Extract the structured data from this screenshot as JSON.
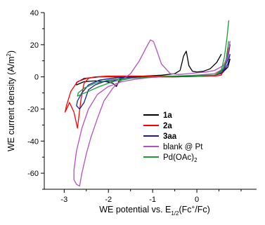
{
  "chart_data": {
    "type": "line",
    "title": "",
    "xlabel": "WE potential vs. E1/2(Fc+/Fc)",
    "xlabel_parts": {
      "main": "WE potential vs. E",
      "sub": "1/2",
      "open": "(Fc",
      "sup": "+",
      "close": "/Fc)"
    },
    "ylabel": "WE current density (A/m2)",
    "ylabel_parts": {
      "main": "WE current density (A/m",
      "sup": "2",
      "close": ")"
    },
    "xlim": [
      -3.45,
      1.35
    ],
    "ylim": [
      -70,
      40
    ],
    "xticks": [
      -3,
      -2,
      -1,
      0
    ],
    "xtick_labels": [
      "-3",
      "-2",
      "-1",
      "0"
    ],
    "yticks": [
      40,
      20,
      0,
      -20,
      -40,
      -60
    ],
    "ytick_labels": [
      "40",
      "20",
      "0",
      "-20",
      "-40",
      "-60"
    ],
    "legend_position": "center-right",
    "series": [
      {
        "name": "1a",
        "legend_bold": true,
        "color": "#000000",
        "points": [
          [
            0.55,
            14
          ],
          [
            0.45,
            9
          ],
          [
            0.3,
            5
          ],
          [
            0.15,
            3.5
          ],
          [
            0.0,
            3
          ],
          [
            -0.1,
            3.5
          ],
          [
            -0.18,
            7
          ],
          [
            -0.24,
            16
          ],
          [
            -0.3,
            13
          ],
          [
            -0.38,
            4
          ],
          [
            -0.5,
            2
          ],
          [
            -0.8,
            1
          ],
          [
            -1.2,
            0.5
          ],
          [
            -1.6,
            0.3
          ],
          [
            -1.75,
            -2
          ],
          [
            -1.82,
            -6
          ],
          [
            -1.9,
            -4
          ],
          [
            -2.05,
            -3
          ],
          [
            -2.3,
            -2.5
          ],
          [
            -2.55,
            -3
          ],
          [
            -2.72,
            -5
          ],
          [
            -2.72,
            -3.5
          ],
          [
            -2.55,
            -1
          ],
          [
            -2.2,
            0
          ],
          [
            -1.5,
            0
          ],
          [
            -0.5,
            0
          ],
          [
            0.3,
            0.5
          ],
          [
            0.55,
            2
          ],
          [
            0.7,
            6
          ],
          [
            0.75,
            11
          ]
        ]
      },
      {
        "name": "2a",
        "legend_bold": true,
        "color": "#ff0000",
        "points": [
          [
            0.72,
            18
          ],
          [
            0.65,
            8
          ],
          [
            0.55,
            2
          ],
          [
            0.3,
            0.5
          ],
          [
            -0.5,
            0
          ],
          [
            -1.5,
            0
          ],
          [
            -2.0,
            0
          ],
          [
            -2.3,
            0
          ],
          [
            -2.45,
            -1
          ],
          [
            -2.55,
            -4
          ],
          [
            -2.62,
            -14
          ],
          [
            -2.7,
            -32
          ],
          [
            -2.78,
            -22
          ],
          [
            -2.88,
            -16
          ],
          [
            -2.98,
            -22
          ],
          [
            -2.95,
            -18
          ],
          [
            -2.85,
            -9
          ],
          [
            -2.7,
            -3
          ],
          [
            -2.5,
            -1
          ],
          [
            -2.3,
            0
          ],
          [
            -2.0,
            0.5
          ],
          [
            -1.0,
            0.5
          ],
          [
            0.0,
            0.5
          ],
          [
            0.4,
            0.5
          ],
          [
            0.55,
            1
          ],
          [
            0.62,
            5
          ],
          [
            0.68,
            10
          ]
        ]
      },
      {
        "name": "3aa",
        "legend_bold": true,
        "color": "#1a1aa0",
        "points": [
          [
            0.75,
            20
          ],
          [
            0.7,
            11
          ],
          [
            0.6,
            4
          ],
          [
            0.4,
            1
          ],
          [
            0.0,
            0.5
          ],
          [
            -0.8,
            0
          ],
          [
            -1.6,
            0
          ],
          [
            -1.9,
            -2.5
          ],
          [
            -2.1,
            -3
          ],
          [
            -2.3,
            -5
          ],
          [
            -2.45,
            -8
          ],
          [
            -2.55,
            -16
          ],
          [
            -2.65,
            -20
          ],
          [
            -2.72,
            -18
          ],
          [
            -2.7,
            -15
          ],
          [
            -2.6,
            -10
          ],
          [
            -2.45,
            -5
          ],
          [
            -2.2,
            -2
          ],
          [
            -1.8,
            -0.5
          ],
          [
            -1.0,
            0
          ],
          [
            0.0,
            0.5
          ],
          [
            0.4,
            1
          ],
          [
            0.6,
            3
          ],
          [
            0.7,
            8
          ],
          [
            0.75,
            14
          ]
        ]
      },
      {
        "name": "blank @ Pt",
        "legend_bold": false,
        "color": "#b44fc0",
        "points": [
          [
            0.75,
            22
          ],
          [
            0.7,
            13
          ],
          [
            0.6,
            7
          ],
          [
            0.4,
            4
          ],
          [
            0.2,
            3
          ],
          [
            0.0,
            2.5
          ],
          [
            -0.2,
            2
          ],
          [
            -0.4,
            1.5
          ],
          [
            -0.6,
            2
          ],
          [
            -0.8,
            8
          ],
          [
            -0.9,
            16
          ],
          [
            -0.98,
            22
          ],
          [
            -1.05,
            23
          ],
          [
            -1.15,
            18
          ],
          [
            -1.3,
            10
          ],
          [
            -1.5,
            2
          ],
          [
            -1.7,
            -2
          ],
          [
            -1.9,
            -7
          ],
          [
            -2.1,
            -15
          ],
          [
            -2.25,
            -26
          ],
          [
            -2.4,
            -38
          ],
          [
            -2.5,
            -48
          ],
          [
            -2.6,
            -60
          ],
          [
            -2.65,
            -68
          ],
          [
            -2.72,
            -67
          ],
          [
            -2.78,
            -64
          ],
          [
            -2.78,
            -58
          ],
          [
            -2.72,
            -46
          ],
          [
            -2.6,
            -32
          ],
          [
            -2.45,
            -20
          ],
          [
            -2.25,
            -11
          ],
          [
            -2.0,
            -6
          ],
          [
            -1.7,
            -3
          ],
          [
            -1.4,
            -1.5
          ],
          [
            -1.1,
            -0.5
          ],
          [
            -0.8,
            0
          ],
          [
            -0.4,
            0.5
          ],
          [
            0.0,
            1
          ],
          [
            0.4,
            2
          ],
          [
            0.6,
            5
          ],
          [
            0.7,
            12
          ]
        ]
      },
      {
        "name": "Pd(OAc)2",
        "legend_label_parts": {
          "main": "Pd(OAc)",
          "sub": "2"
        },
        "legend_bold": false,
        "color": "#1c9a3a",
        "points": [
          [
            0.72,
            35
          ],
          [
            0.68,
            24
          ],
          [
            0.62,
            12
          ],
          [
            0.55,
            4
          ],
          [
            0.4,
            1
          ],
          [
            0.0,
            0.5
          ],
          [
            -0.5,
            0.5
          ],
          [
            -1.0,
            0
          ],
          [
            -1.5,
            -1
          ],
          [
            -1.9,
            -3
          ],
          [
            -2.2,
            -6
          ],
          [
            -2.45,
            -9
          ],
          [
            -2.62,
            -11
          ],
          [
            -2.7,
            -12
          ],
          [
            -2.68,
            -10
          ],
          [
            -2.55,
            -7
          ],
          [
            -2.3,
            -4
          ],
          [
            -2.0,
            -2
          ],
          [
            -1.6,
            -1
          ],
          [
            -1.0,
            0
          ],
          [
            -0.5,
            0.5
          ],
          [
            0.0,
            1
          ],
          [
            0.4,
            1
          ],
          [
            0.55,
            3
          ],
          [
            0.65,
            9
          ],
          [
            0.72,
            22
          ]
        ]
      }
    ]
  }
}
